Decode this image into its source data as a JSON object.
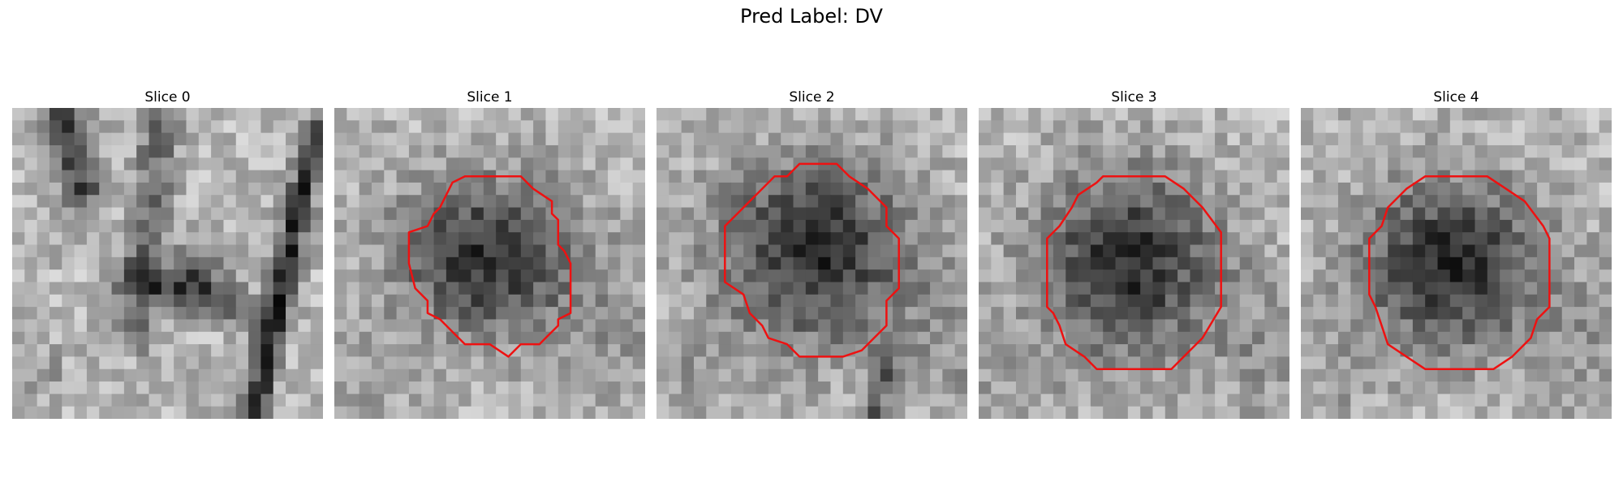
{
  "figure": {
    "title": "Pred Label: DV"
  },
  "panels": [
    {
      "title": "Slice 0",
      "contour": false
    },
    {
      "title": "Slice 1",
      "contour": true
    },
    {
      "title": "Slice 2",
      "contour": true
    },
    {
      "title": "Slice 3",
      "contour": true
    },
    {
      "title": "Slice 4",
      "contour": true
    }
  ],
  "colors": {
    "contour": "#ee1111",
    "background": "#ffffff"
  }
}
